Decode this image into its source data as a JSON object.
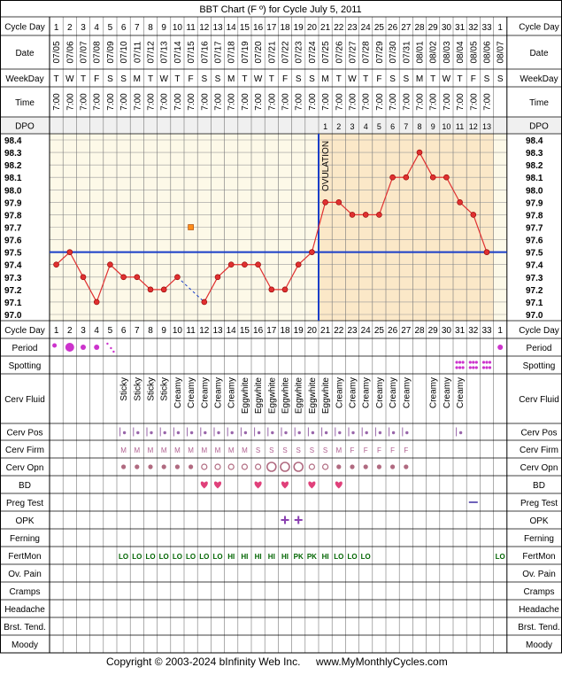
{
  "header": {
    "title": "BBT Chart (F º) for Cycle July 5, 2011"
  },
  "footer": {
    "copyright": "Copyright © 2003-2024 bInfinity Web Inc.",
    "site": "www.MyMonthlyCycles.com"
  },
  "colors": {
    "grid": "#000000",
    "pre_ovulation_bg": "#fdf9e8",
    "post_ovulation_bg": "#fbe8c8",
    "temp_line": "#e03030",
    "coverline": "#1a3ec8",
    "ovulation_line": "#1a3ec8",
    "period_dot": "#cc33cc",
    "fertmon": "#006400",
    "bd_heart": "#e0407a",
    "text": "#000000"
  },
  "row_labels": {
    "cycle_day": "Cycle Day",
    "date": "Date",
    "weekday": "WeekDay",
    "time": "Time",
    "dpo": "DPO",
    "period": "Period",
    "spotting": "Spotting",
    "cerv_fluid": "Cerv Fluid",
    "cerv_pos": "Cerv Pos",
    "cerv_firm": "Cerv Firm",
    "cerv_opn": "Cerv Opn",
    "bd": "BD",
    "preg_test": "Preg Test",
    "opk": "OPK",
    "ferning": "Ferning",
    "fertmon": "FertMon",
    "ov_pain": "Ov. Pain",
    "cramps": "Cramps",
    "headache": "Headache",
    "brst_tend": "Brst. Tend.",
    "moody": "Moody"
  },
  "ovulation_label": "OVULATION",
  "chart_data": {
    "type": "line",
    "title": "BBT Chart (F º) for Cycle July 5, 2011",
    "ylim": [
      97.0,
      98.4
    ],
    "y_ticks": [
      "98.4",
      "98.3",
      "98.2",
      "98.1",
      "98.0",
      "97.9",
      "97.8",
      "97.7",
      "97.6",
      "97.5",
      "97.4",
      "97.3",
      "97.2",
      "97.1",
      "97.0"
    ],
    "cycle_days": [
      "1",
      "2",
      "3",
      "4",
      "5",
      "6",
      "7",
      "8",
      "9",
      "10",
      "11",
      "12",
      "13",
      "14",
      "15",
      "16",
      "17",
      "18",
      "19",
      "20",
      "21",
      "22",
      "23",
      "24",
      "25",
      "26",
      "27",
      "28",
      "29",
      "30",
      "31",
      "32",
      "33",
      "1"
    ],
    "dates": [
      "07/05",
      "07/06",
      "07/07",
      "07/08",
      "07/09",
      "07/10",
      "07/11",
      "07/12",
      "07/13",
      "07/14",
      "07/15",
      "07/16",
      "07/17",
      "07/18",
      "07/19",
      "07/20",
      "07/21",
      "07/22",
      "07/23",
      "07/24",
      "07/25",
      "07/26",
      "07/27",
      "07/28",
      "07/29",
      "07/30",
      "07/31",
      "08/01",
      "08/02",
      "08/03",
      "08/04",
      "08/05",
      "08/06",
      "08/07"
    ],
    "weekdays": [
      "T",
      "W",
      "T",
      "F",
      "S",
      "S",
      "M",
      "T",
      "W",
      "T",
      "F",
      "S",
      "S",
      "M",
      "T",
      "W",
      "T",
      "F",
      "S",
      "S",
      "M",
      "T",
      "W",
      "T",
      "F",
      "S",
      "S",
      "M",
      "T",
      "W",
      "T",
      "F",
      "S",
      "S"
    ],
    "times": [
      "7:00",
      "7:00",
      "7:00",
      "7:00",
      "7:00",
      "7:00",
      "7:00",
      "7:00",
      "7:00",
      "7:00",
      "7:00",
      "7:00",
      "7:00",
      "7:00",
      "7:00",
      "7:00",
      "7:00",
      "7:00",
      "7:00",
      "7:00",
      "7:00",
      "7:00",
      "7:00",
      "7:00",
      "7:00",
      "7:00",
      "7:00",
      "7:00",
      "7:00",
      "7:00",
      "7:00",
      "7:00",
      "7:00",
      ""
    ],
    "dpo": [
      "",
      "",
      "",
      "",
      "",
      "",
      "",
      "",
      "",
      "",
      "",
      "",
      "",
      "",
      "",
      "",
      "",
      "",
      "",
      "",
      "1",
      "2",
      "3",
      "4",
      "5",
      "6",
      "7",
      "8",
      "9",
      "10",
      "11",
      "12",
      "13",
      ""
    ],
    "temps": [
      97.4,
      97.5,
      97.3,
      97.1,
      97.4,
      97.3,
      97.3,
      97.2,
      97.2,
      97.3,
      null,
      97.1,
      97.3,
      97.4,
      97.4,
      97.4,
      97.2,
      97.2,
      97.4,
      97.5,
      97.9,
      97.9,
      97.8,
      97.8,
      97.8,
      98.1,
      98.1,
      98.3,
      98.1,
      98.1,
      97.9,
      97.8,
      97.5,
      null
    ],
    "discarded": [
      {
        "day_index": 10,
        "temp": 97.7
      }
    ],
    "coverline": 97.5,
    "ovulation_after_day_index": 19,
    "post_ovulation_shading_from_index": 20,
    "post_ovulation_shading_to_index": 32,
    "period": [
      "heavy-dot",
      "big-dot",
      "dot",
      "dot",
      "spotting-dots",
      "",
      "",
      "",
      "",
      "",
      "",
      "",
      "",
      "",
      "",
      "",
      "",
      "",
      "",
      "",
      "",
      "",
      "",
      "",
      "",
      "",
      "",
      "",
      "",
      "",
      "",
      "",
      "",
      "dot"
    ],
    "spotting": [
      "",
      "",
      "",
      "",
      "",
      "",
      "",
      "",
      "",
      "",
      "",
      "",
      "",
      "",
      "",
      "",
      "",
      "",
      "",
      "",
      "",
      "",
      "",
      "",
      "",
      "",
      "",
      "",
      "",
      "",
      "spot",
      "spot",
      "spot",
      ""
    ],
    "cerv_fluid": [
      "",
      "",
      "",
      "",
      "",
      "Sticky",
      "Sticky",
      "Sticky",
      "Sticky",
      "Creamy",
      "Creamy",
      "Creamy",
      "Creamy",
      "Creamy",
      "Eggwhite",
      "Eggwhite",
      "Eggwhite",
      "Eggwhite",
      "Eggwhite",
      "Eggwhite",
      "Eggwhite",
      "Creamy",
      "Creamy",
      "Creamy",
      "Creamy",
      "Creamy",
      "Creamy",
      "",
      "Creamy",
      "Creamy",
      "Creamy",
      "",
      "",
      ""
    ],
    "cerv_pos": [
      "",
      "",
      "",
      "",
      "",
      "low",
      "low",
      "low",
      "low",
      "low",
      "low",
      "low",
      "low",
      "low",
      "low",
      "low",
      "low",
      "low",
      "low",
      "low",
      "low",
      "low",
      "low",
      "low",
      "low",
      "low",
      "low",
      "",
      "",
      "",
      "low",
      "",
      "",
      ""
    ],
    "cerv_firm": [
      "",
      "",
      "",
      "",
      "",
      "M",
      "M",
      "M",
      "M",
      "M",
      "M",
      "M",
      "M",
      "M",
      "M",
      "S",
      "S",
      "S",
      "S",
      "S",
      "S",
      "M",
      "F",
      "F",
      "F",
      "F",
      "F",
      "",
      "",
      "",
      "",
      "",
      "",
      ""
    ],
    "cerv_opn": [
      "",
      "",
      "",
      "",
      "",
      "dot",
      "dot",
      "dot",
      "dot",
      "dot",
      "dot",
      "ring",
      "ring",
      "ring",
      "ring",
      "ring",
      "big-ring",
      "big-ring",
      "big-ring",
      "ring",
      "ring",
      "dot",
      "dot",
      "dot",
      "dot",
      "dot",
      "dot",
      "",
      "",
      "",
      "",
      "",
      "",
      ""
    ],
    "bd": [
      "",
      "",
      "",
      "",
      "",
      "",
      "",
      "",
      "",
      "",
      "",
      "heart",
      "heart",
      "",
      "",
      "heart",
      "",
      "heart",
      "",
      "heart",
      "",
      "heart",
      "",
      "",
      "",
      "",
      "",
      "",
      "",
      "",
      "",
      "",
      "",
      ""
    ],
    "preg_test": [
      "",
      "",
      "",
      "",
      "",
      "",
      "",
      "",
      "",
      "",
      "",
      "",
      "",
      "",
      "",
      "",
      "",
      "",
      "",
      "",
      "",
      "",
      "",
      "",
      "",
      "",
      "",
      "",
      "",
      "",
      "",
      "neg",
      "",
      ""
    ],
    "opk": [
      "",
      "",
      "",
      "",
      "",
      "",
      "",
      "",
      "",
      "",
      "",
      "",
      "",
      "",
      "",
      "",
      "",
      "pos",
      "pos",
      "",
      "",
      "",
      "",
      "",
      "",
      "",
      "",
      "",
      "",
      "",
      "",
      "",
      "",
      ""
    ],
    "fertmon": [
      "",
      "",
      "",
      "",
      "",
      "LO",
      "LO",
      "LO",
      "LO",
      "LO",
      "LO",
      "LO",
      "LO",
      "HI",
      "HI",
      "HI",
      "HI",
      "HI",
      "PK",
      "PK",
      "HI",
      "LO",
      "LO",
      "LO",
      "",
      "",
      "",
      "",
      "",
      "",
      "",
      "",
      "",
      "LO"
    ]
  }
}
